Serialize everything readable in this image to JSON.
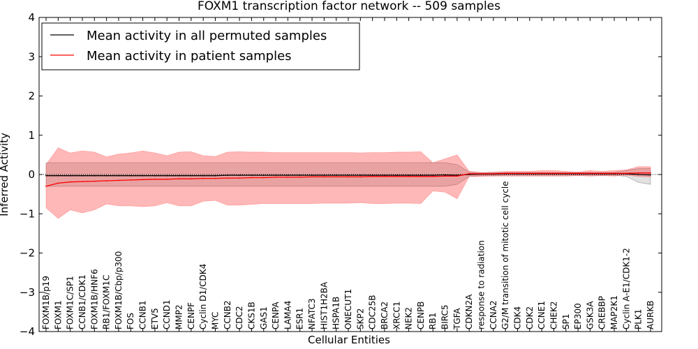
{
  "chart_data": {
    "type": "line",
    "title": "FOXM1 transcription factor network -- 509 samples",
    "xlabel": "Cellular Entities",
    "ylabel": "Inferred Activity",
    "ylim": [
      -4,
      4
    ],
    "yticks": [
      -4,
      -3,
      -2,
      -1,
      0,
      1,
      2,
      3,
      4
    ],
    "ytick_labels": [
      "−4",
      "−3",
      "−2",
      "−1",
      "0",
      "1",
      "2",
      "3",
      "4"
    ],
    "legend": {
      "placement": "top-left",
      "entries": [
        {
          "label": "Mean activity in all permuted samples",
          "color": "#000000"
        },
        {
          "label": "Mean activity in patient samples",
          "color": "#ff0000"
        }
      ]
    },
    "categories": [
      "FOXM1B/p19",
      "FOXM1",
      "FOXM1C/SP1",
      "CCNB1/CDK1",
      "FOXM1B/HNF6",
      "RB1/FOXM1C",
      "FOXM1B/Cbp/p300",
      "FOS",
      "CCNB1",
      "ETV5",
      "CCND1",
      "MMP2",
      "CENPF",
      "Cyclin D1/CDK4",
      "MYC",
      "CCNB2",
      "CDC2",
      "CKS1B",
      "GAS1",
      "CENPA",
      "LAMA4",
      "ESR1",
      "NFATC3",
      "HIST1H2BA",
      "HSPA1B",
      "ONECUT1",
      "SKP2",
      "CDC25B",
      "BRCA2",
      "XRCC1",
      "NEK2",
      "CENPB",
      "RB1",
      "BIRC5",
      "TGFA",
      "CDKN2A",
      "response to radiation",
      "CCNA2",
      "G2/M transition of mitotic cell cycle",
      "CDK4",
      "CDK2",
      "CCNE1",
      "CHEK2",
      "SP1",
      "EP300",
      "GSK3A",
      "CREBBP",
      "MAP2K1",
      "Cyclin A-E1/CDK1-2",
      "PLK1",
      "AURKB"
    ],
    "series": [
      {
        "name": "Mean activity in all permuted samples",
        "color": "#000000",
        "values": [
          -0.03,
          -0.03,
          -0.03,
          -0.03,
          -0.03,
          -0.03,
          -0.03,
          -0.03,
          -0.03,
          -0.03,
          -0.03,
          -0.03,
          -0.03,
          -0.03,
          -0.03,
          -0.02,
          -0.02,
          -0.02,
          -0.02,
          -0.02,
          -0.02,
          -0.02,
          -0.02,
          -0.02,
          -0.02,
          -0.02,
          -0.02,
          -0.02,
          -0.02,
          -0.02,
          -0.02,
          -0.02,
          -0.02,
          -0.01,
          -0.02,
          0.0,
          0.01,
          0.01,
          0.02,
          0.02,
          0.02,
          0.02,
          0.02,
          0.02,
          0.02,
          0.02,
          0.02,
          0.02,
          0.02,
          0.0,
          -0.01
        ],
        "upper": [
          0.3,
          0.3,
          0.3,
          0.3,
          0.3,
          0.3,
          0.3,
          0.3,
          0.3,
          0.3,
          0.3,
          0.3,
          0.3,
          0.3,
          0.3,
          0.3,
          0.3,
          0.3,
          0.3,
          0.3,
          0.3,
          0.3,
          0.3,
          0.3,
          0.3,
          0.3,
          0.3,
          0.3,
          0.3,
          0.3,
          0.3,
          0.3,
          0.3,
          0.3,
          0.25,
          0.06,
          0.05,
          0.05,
          0.05,
          0.05,
          0.05,
          0.05,
          0.05,
          0.05,
          0.05,
          0.05,
          0.05,
          0.05,
          0.1,
          0.15,
          0.15
        ],
        "lower": [
          -0.3,
          -0.3,
          -0.3,
          -0.3,
          -0.3,
          -0.3,
          -0.3,
          -0.3,
          -0.3,
          -0.3,
          -0.3,
          -0.3,
          -0.3,
          -0.3,
          -0.3,
          -0.3,
          -0.3,
          -0.3,
          -0.3,
          -0.3,
          -0.3,
          -0.3,
          -0.3,
          -0.3,
          -0.3,
          -0.3,
          -0.3,
          -0.3,
          -0.3,
          -0.3,
          -0.3,
          -0.3,
          -0.3,
          -0.3,
          -0.25,
          -0.05,
          -0.03,
          -0.03,
          -0.02,
          -0.02,
          -0.02,
          -0.02,
          -0.02,
          -0.02,
          -0.02,
          -0.02,
          -0.02,
          -0.02,
          -0.05,
          -0.2,
          -0.25
        ]
      },
      {
        "name": "Mean activity in patient samples",
        "color": "#ff0000",
        "values": [
          -0.3,
          -0.22,
          -0.19,
          -0.18,
          -0.17,
          -0.16,
          -0.15,
          -0.14,
          -0.13,
          -0.12,
          -0.12,
          -0.11,
          -0.11,
          -0.1,
          -0.1,
          -0.09,
          -0.09,
          -0.08,
          -0.08,
          -0.07,
          -0.07,
          -0.07,
          -0.06,
          -0.06,
          -0.06,
          -0.06,
          -0.06,
          -0.05,
          -0.05,
          -0.05,
          -0.05,
          -0.05,
          -0.05,
          -0.04,
          -0.04,
          0.02,
          0.02,
          0.02,
          0.03,
          0.03,
          0.03,
          0.03,
          0.03,
          0.03,
          0.03,
          0.03,
          0.03,
          0.03,
          0.03,
          0.04,
          0.04
        ],
        "upper": [
          0.25,
          0.68,
          0.55,
          0.6,
          0.57,
          0.45,
          0.52,
          0.55,
          0.6,
          0.55,
          0.48,
          0.57,
          0.58,
          0.48,
          0.46,
          0.57,
          0.58,
          0.57,
          0.57,
          0.56,
          0.56,
          0.56,
          0.56,
          0.56,
          0.56,
          0.56,
          0.55,
          0.56,
          0.56,
          0.57,
          0.57,
          0.58,
          0.3,
          0.4,
          0.5,
          0.08,
          0.05,
          0.06,
          0.08,
          0.08,
          0.08,
          0.1,
          0.1,
          0.08,
          0.06,
          0.1,
          0.08,
          0.1,
          0.12,
          0.2,
          0.2
        ],
        "lower": [
          -0.85,
          -1.12,
          -0.9,
          -0.98,
          -0.9,
          -0.75,
          -0.8,
          -0.8,
          -0.82,
          -0.8,
          -0.72,
          -0.8,
          -0.8,
          -0.68,
          -0.66,
          -0.78,
          -0.78,
          -0.76,
          -0.74,
          -0.74,
          -0.74,
          -0.74,
          -0.74,
          -0.73,
          -0.73,
          -0.73,
          -0.72,
          -0.74,
          -0.74,
          -0.73,
          -0.73,
          -0.74,
          -0.42,
          -0.45,
          -0.62,
          -0.05,
          -0.05,
          -0.04,
          -0.04,
          -0.04,
          -0.04,
          -0.04,
          -0.04,
          -0.04,
          -0.03,
          -0.04,
          -0.03,
          -0.04,
          -0.02,
          -0.05,
          -0.06
        ]
      }
    ]
  }
}
